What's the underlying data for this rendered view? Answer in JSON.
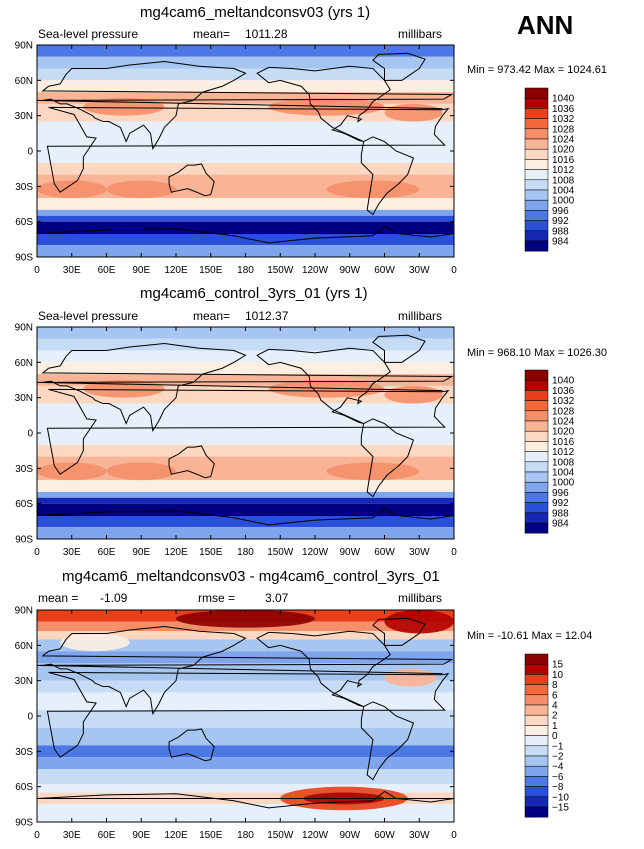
{
  "season": "ANN",
  "x_tick_labels": [
    "0",
    "30E",
    "60E",
    "90E",
    "120E",
    "150E",
    "180",
    "150W",
    "120W",
    "90W",
    "60W",
    "30W",
    "0"
  ],
  "y_tick_labels": [
    "90N",
    "60N",
    "30N",
    "0",
    "30S",
    "60S",
    "90S"
  ],
  "chart_data": [
    {
      "type": "heatmap",
      "title": "mg4cam6_meltandconsv03 (yrs 1)",
      "variable": "Sea-level pressure",
      "mean_label": "mean=",
      "mean": "1011.28",
      "units": "millibars",
      "minmax_text": "Min = 973.42 Max = 1024.61",
      "min": 973.42,
      "max": 1024.61,
      "colorbar_levels": [
        "1040",
        "1036",
        "1032",
        "1028",
        "1024",
        "1020",
        "1016",
        "1012",
        "1008",
        "1004",
        "1000",
        "996",
        "992",
        "988",
        "984"
      ],
      "colors": [
        "#8b0000",
        "#b30000",
        "#e8401a",
        "#f26a3c",
        "#f58f6a",
        "#f9b496",
        "#fcd8c2",
        "#fdeee2",
        "#e6f0fb",
        "#c6dcf5",
        "#a6c5f0",
        "#7fa6ec",
        "#4c78e6",
        "#2a4fd8",
        "#1428b4",
        "#000080"
      ]
    },
    {
      "type": "heatmap",
      "title": "mg4cam6_control_3yrs_01 (yrs 1)",
      "variable": "Sea-level pressure",
      "mean_label": "mean=",
      "mean": "1012.37",
      "units": "millibars",
      "minmax_text": "Min = 968.10 Max = 1026.30",
      "min": 968.1,
      "max": 1026.3,
      "colorbar_levels": [
        "1040",
        "1036",
        "1032",
        "1028",
        "1024",
        "1020",
        "1016",
        "1012",
        "1008",
        "1004",
        "1000",
        "996",
        "992",
        "988",
        "984"
      ],
      "colors": [
        "#8b0000",
        "#b30000",
        "#e8401a",
        "#f26a3c",
        "#f58f6a",
        "#f9b496",
        "#fcd8c2",
        "#fdeee2",
        "#e6f0fb",
        "#c6dcf5",
        "#a6c5f0",
        "#7fa6ec",
        "#4c78e6",
        "#2a4fd8",
        "#1428b4",
        "#000080"
      ]
    },
    {
      "type": "heatmap",
      "title": "mg4cam6_meltandconsv03 - mg4cam6_control_3yrs_01",
      "mean_label": "mean =",
      "mean": "-1.09",
      "rmse_label": "rmse =",
      "rmse": "3.07",
      "units": "millibars",
      "minmax_text": "Min = -10.61 Max = 12.04",
      "min": -10.61,
      "max": 12.04,
      "colorbar_levels": [
        "15",
        "10",
        "8",
        "6",
        "4",
        "2",
        "1",
        "0",
        "−1",
        "−2",
        "−4",
        "−6",
        "−8",
        "−10",
        "−15"
      ],
      "colors": [
        "#8b0000",
        "#b30000",
        "#e8401a",
        "#f26a3c",
        "#f58f6a",
        "#f9b496",
        "#fcd8c2",
        "#fdeee2",
        "#e6f0fb",
        "#c6dcf5",
        "#a6c5f0",
        "#7fa6ec",
        "#4c78e6",
        "#2a4fd8",
        "#1428b4",
        "#000080"
      ]
    }
  ]
}
